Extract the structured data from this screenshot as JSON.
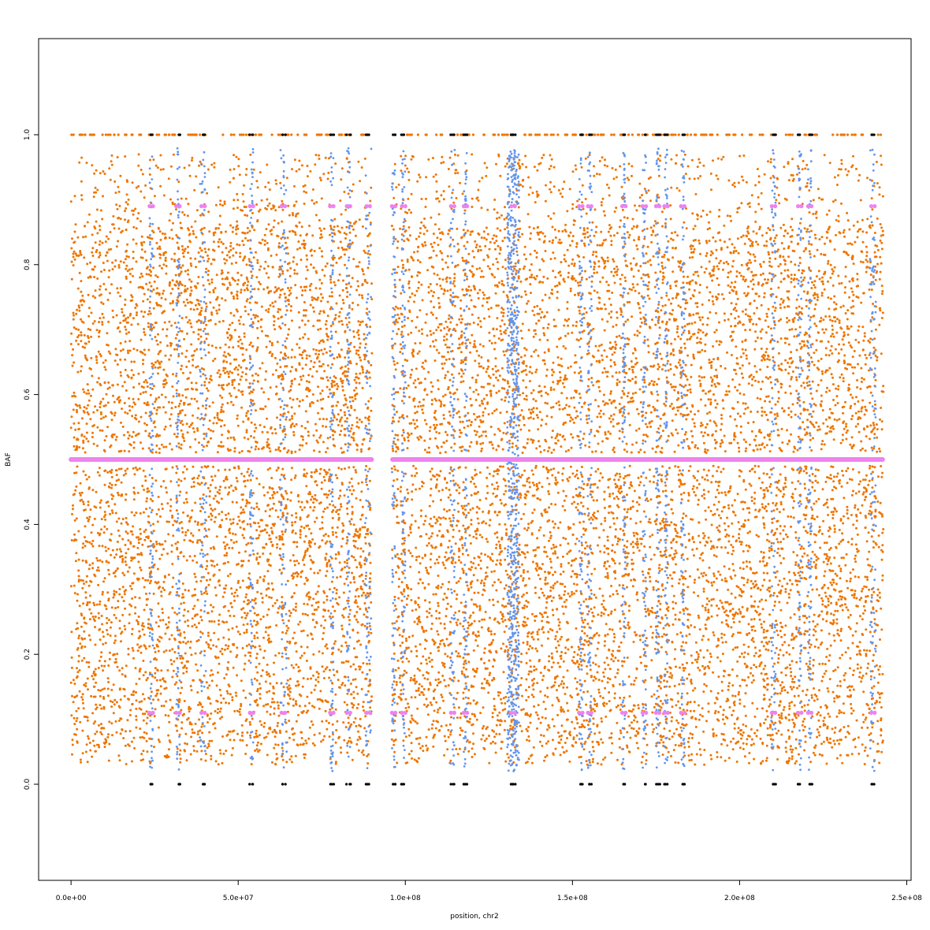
{
  "chart_data": {
    "type": "scatter",
    "title": "",
    "xlabel": "position, chr2",
    "ylabel": "BAF",
    "xlim": [
      -9700000,
      251300000
    ],
    "ylim": [
      -0.148,
      1.148
    ],
    "x_ticks": [
      0,
      50000000,
      100000000,
      150000000,
      200000000,
      250000000
    ],
    "x_tick_labels": [
      "0.0e+00",
      "5.0e+07",
      "1.0e+08",
      "1.5e+08",
      "2.0e+08",
      "2.5e+08"
    ],
    "y_ticks": [
      0.0,
      0.2,
      0.4,
      0.6,
      0.8,
      1.0
    ],
    "y_tick_labels": [
      "0.0",
      "0.2",
      "0.4",
      "0.6",
      "0.8",
      "1.0"
    ],
    "grid": false,
    "legend": "none",
    "chromosome_extent": [
      0,
      243000000
    ],
    "centromere_gap": [
      90000000,
      96000000
    ],
    "series": [
      {
        "role": "heterozygous",
        "color": "#EE7600",
        "bands": [
          [
            0.03,
            0.49
          ],
          [
            0.51,
            0.97
          ]
        ],
        "homozygous_line": 1.0
      },
      {
        "role": "altered",
        "color": "#6495ED",
        "x_regions": [
          [
            23500000,
            24500000
          ],
          [
            31500000,
            32500000
          ],
          [
            38500000,
            40500000
          ],
          [
            53500000,
            54500000
          ],
          [
            62500000,
            64500000
          ],
          [
            77500000,
            78500000
          ],
          [
            82500000,
            83500000
          ],
          [
            88000000,
            89800000
          ],
          [
            96000000,
            97000000
          ],
          [
            99000000,
            100000000
          ],
          [
            113500000,
            114800000
          ],
          [
            117500000,
            118500000
          ],
          [
            130500000,
            134000000
          ],
          [
            152000000,
            153000000
          ],
          [
            154500000,
            155800000
          ],
          [
            165000000,
            165800000
          ],
          [
            171000000,
            172000000
          ],
          [
            175000000,
            176000000
          ],
          [
            177500000,
            178500000
          ],
          [
            182500000,
            183500000
          ],
          [
            209500000,
            210800000
          ],
          [
            217500000,
            218500000
          ],
          [
            220500000,
            221500000
          ],
          [
            239000000,
            240800000
          ]
        ]
      },
      {
        "role": "segments",
        "color": "#EE82EE",
        "mean_baf": 0.5,
        "levels": [
          0.11,
          0.89
        ]
      },
      {
        "role": "homozygous-altered",
        "color": "#000000",
        "levels": [
          0.0,
          1.0
        ]
      }
    ]
  }
}
